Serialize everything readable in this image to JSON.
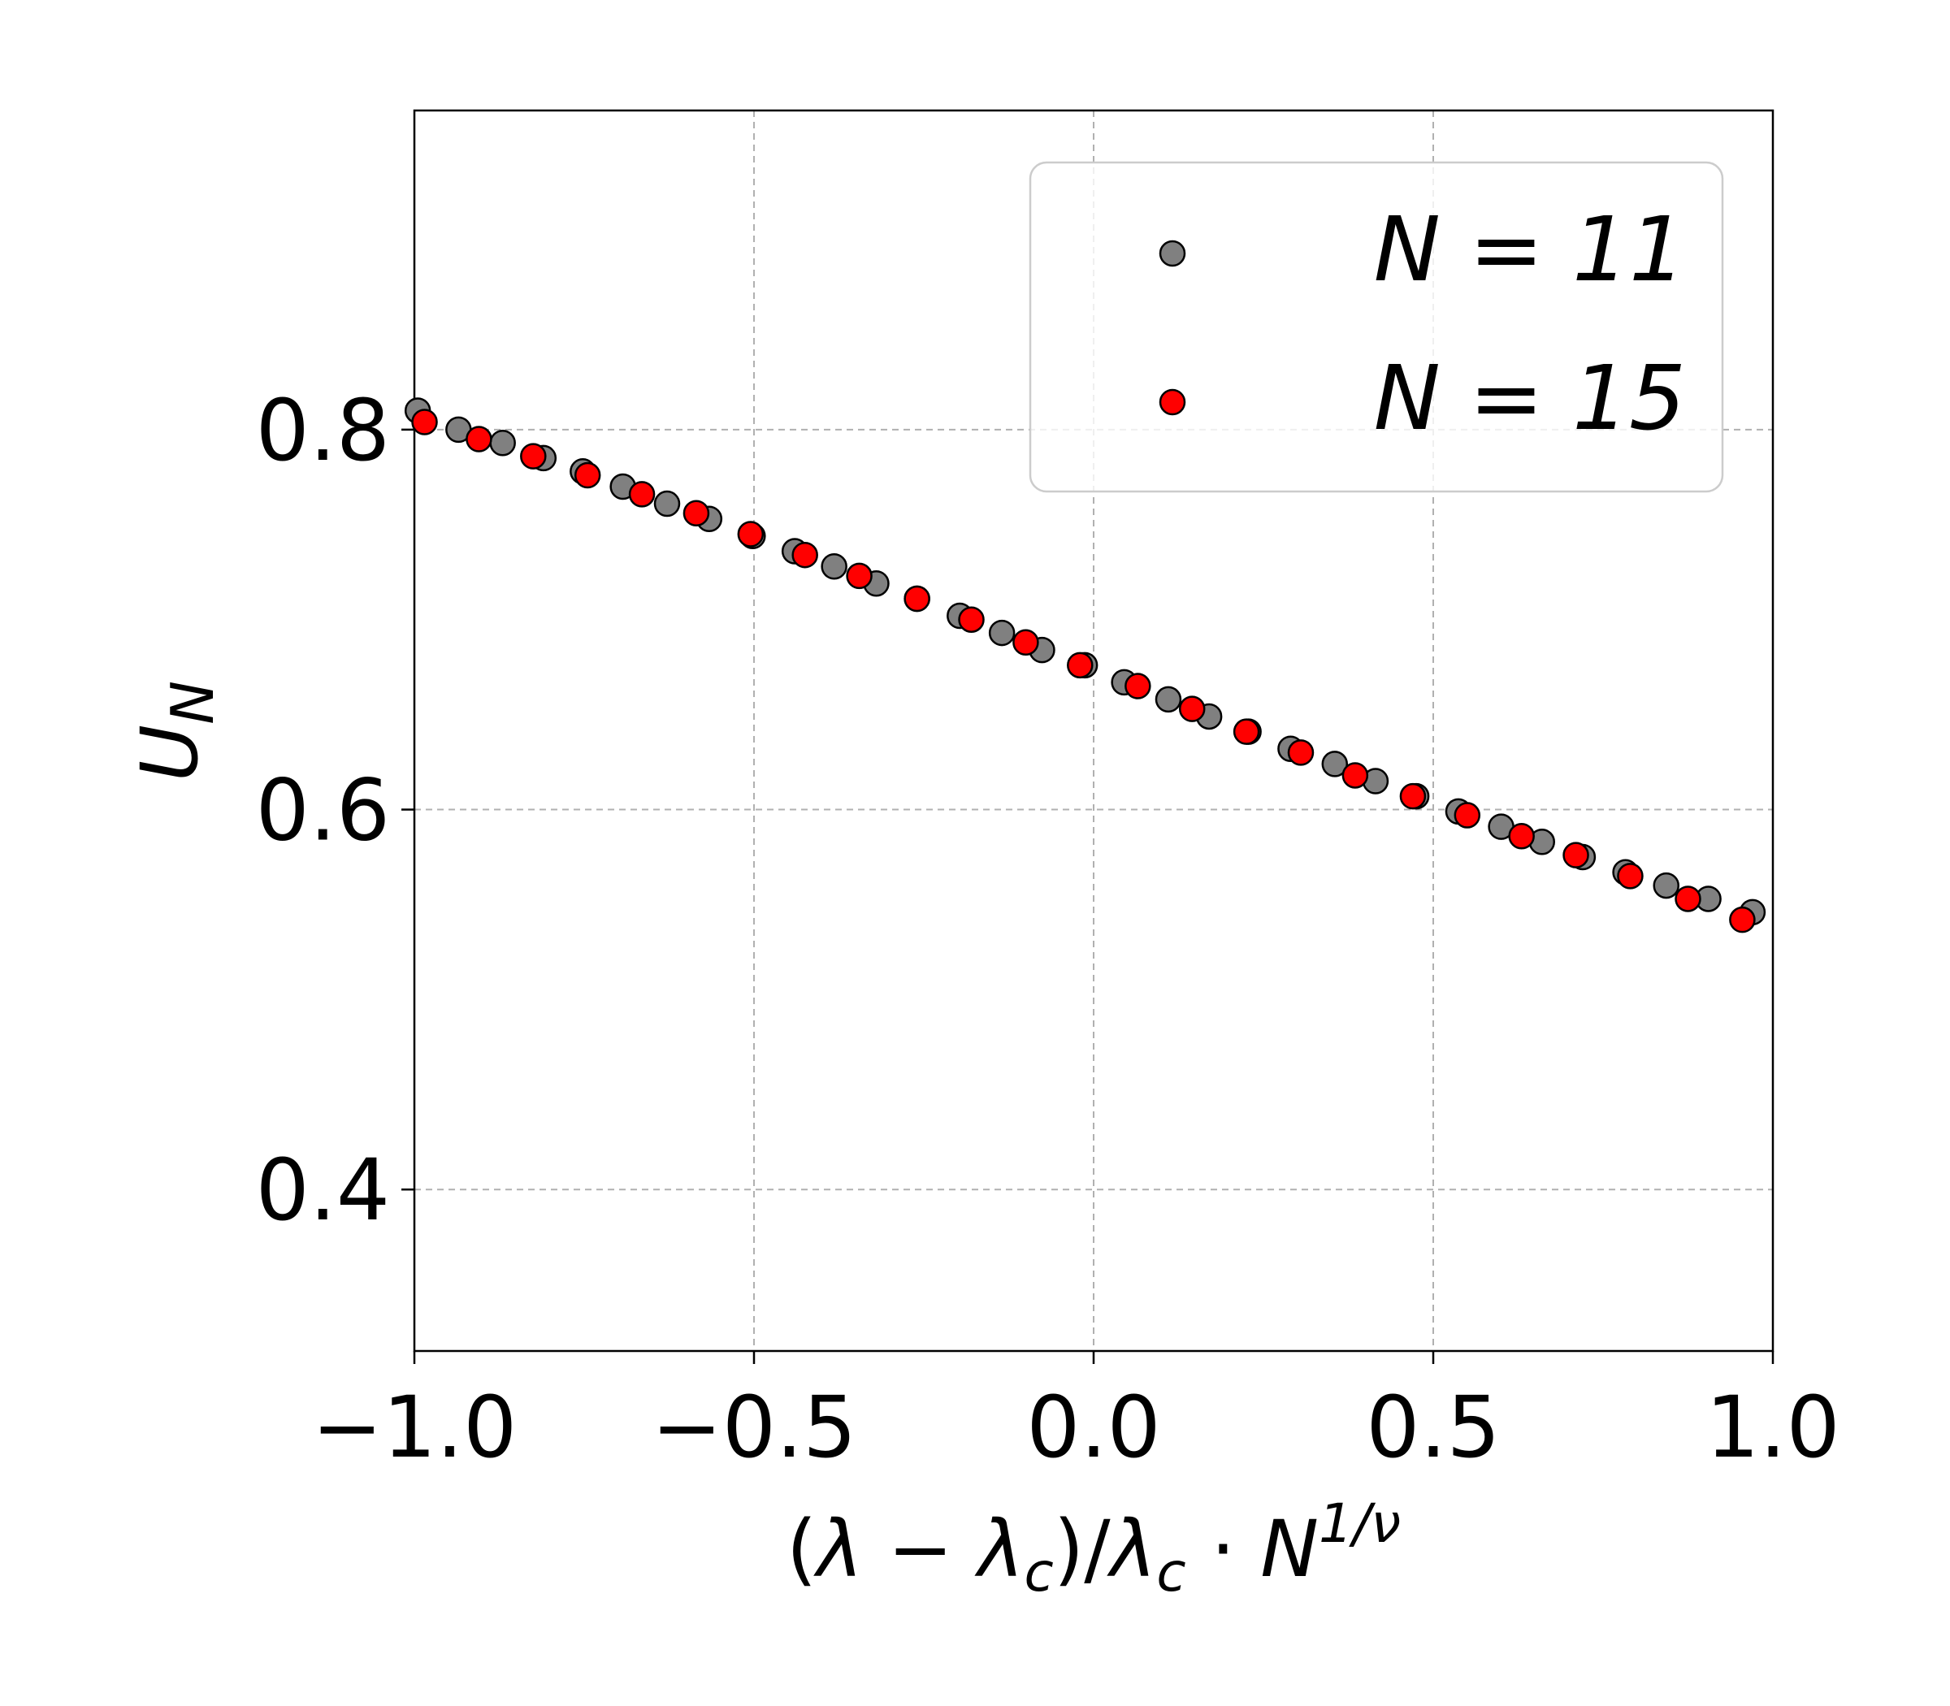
{
  "chart_data": {
    "type": "scatter",
    "xlabel": "(λ − λc)/λc · N^(1/ν)",
    "ylabel": "U_N",
    "xlim": [
      -1.0,
      1.0
    ],
    "ylim": [
      0.315,
      0.968
    ],
    "xticks": [
      -1.0,
      -0.5,
      0.0,
      0.5,
      1.0
    ],
    "xtick_labels": [
      "−1.0",
      "−0.5",
      "0.0",
      "0.5",
      "1.0"
    ],
    "yticks": [
      0.4,
      0.6,
      0.8
    ],
    "ytick_labels": [
      "0.4",
      "0.6",
      "0.8"
    ],
    "grid": true,
    "legend_position": "top-right",
    "series": [
      {
        "name": "N = 11",
        "color": "#808080",
        "x": [
          -0.995,
          -0.935,
          -0.87,
          -0.81,
          -0.752,
          -0.693,
          -0.628,
          -0.566,
          -0.502,
          -0.44,
          -0.382,
          -0.32,
          -0.26,
          -0.197,
          -0.135,
          -0.076,
          -0.013,
          0.045,
          0.11,
          0.17,
          0.228,
          0.29,
          0.355,
          0.415,
          0.475,
          0.537,
          0.6,
          0.66,
          0.72,
          0.783,
          0.843,
          0.905,
          0.97
        ],
        "y": [
          0.81,
          0.8,
          0.793,
          0.785,
          0.778,
          0.77,
          0.761,
          0.753,
          0.744,
          0.736,
          0.728,
          0.719,
          0.711,
          0.702,
          0.693,
          0.684,
          0.676,
          0.667,
          0.658,
          0.649,
          0.641,
          0.632,
          0.624,
          0.615,
          0.607,
          0.599,
          0.591,
          0.583,
          0.575,
          0.567,
          0.56,
          0.553,
          0.546
        ]
      },
      {
        "name": "N = 15",
        "color": "#ff0000",
        "x": [
          -0.985,
          -0.905,
          -0.825,
          -0.745,
          -0.665,
          -0.585,
          -0.505,
          -0.425,
          -0.345,
          -0.26,
          -0.18,
          -0.1,
          -0.02,
          0.065,
          0.145,
          0.225,
          0.305,
          0.385,
          0.47,
          0.55,
          0.63,
          0.71,
          0.79,
          0.875,
          0.955
        ],
        "y": [
          0.804,
          0.795,
          0.786,
          0.776,
          0.766,
          0.756,
          0.745,
          0.734,
          0.723,
          0.711,
          0.7,
          0.688,
          0.676,
          0.665,
          0.653,
          0.641,
          0.63,
          0.618,
          0.607,
          0.597,
          0.586,
          0.576,
          0.565,
          0.553,
          0.542
        ]
      }
    ]
  }
}
